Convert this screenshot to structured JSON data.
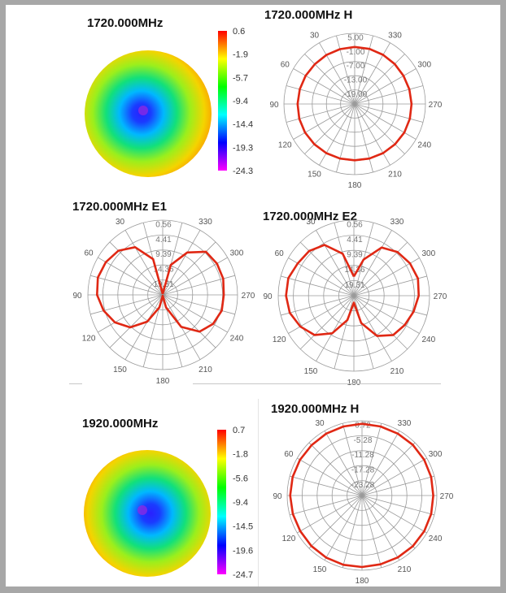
{
  "chart_data": [
    {
      "type": "heatmap",
      "title": "1720.000MHz",
      "colorbar_ticks": [
        "0.6",
        "-1.9",
        "-5.7",
        "-9.4",
        "-14.4",
        "-19.3",
        "-24.3"
      ],
      "range": [
        -24.3,
        0.6
      ],
      "colormap": [
        "#ff00ff",
        "#0000ff",
        "#00ffff",
        "#00ff00",
        "#ffff00",
        "#ff0000"
      ]
    },
    {
      "type": "polar",
      "title": "1720.000MHz  H",
      "radial_ticks": [
        "5.00",
        "-1.00",
        "-7.00",
        "-13.00",
        "-19.00"
      ],
      "radial_range": [
        -25,
        5
      ],
      "angle_labels": [
        "30",
        "60",
        "90",
        "120",
        "150",
        "180",
        "210",
        "240",
        "270",
        "300",
        "330"
      ],
      "series": [
        {
          "color": "#e02814",
          "r_values": [
            -0.8,
            -0.9,
            -1.0,
            -1.1,
            -1.0,
            -0.9,
            -0.8,
            -0.7,
            -0.7,
            -0.8,
            -0.9,
            -1.0,
            -1.1,
            -1.0,
            -0.9,
            -0.8,
            -0.7,
            -0.8,
            -0.9,
            -1.0,
            -1.1,
            -1.0,
            -0.9,
            -0.8
          ]
        }
      ]
    },
    {
      "type": "polar",
      "title": "1720.000MHz  E1",
      "radial_ticks": [
        "0.56",
        "4.41",
        "9.39",
        "14.36",
        "19.31"
      ],
      "radial_range": [
        -24.3,
        0.56
      ],
      "angle_labels": [
        "30",
        "60",
        "90",
        "120",
        "150",
        "180",
        "210",
        "240",
        "270",
        "300",
        "330"
      ],
      "series": [
        {
          "color": "#e02814",
          "r_values": [
            -24,
            -12,
            -6,
            -3.5,
            -2.5,
            -2,
            -2.5,
            -4,
            -6,
            -9,
            -14,
            -20,
            -24,
            -20,
            -12,
            -7,
            -5,
            -4,
            -4,
            -3.5,
            -3.5,
            -4,
            -8,
            -14
          ]
        }
      ]
    },
    {
      "type": "polar",
      "title": "1720.000MHz  E2",
      "radial_ticks": [
        "0.56",
        "4.41",
        "9.39",
        "14.36",
        "19.31"
      ],
      "radial_range": [
        -24.3,
        0.56
      ],
      "angle_labels": [
        "30",
        "60",
        "90",
        "120",
        "150",
        "180",
        "210",
        "240",
        "270",
        "300",
        "330"
      ],
      "series": [
        {
          "color": "#e02814",
          "r_values": [
            -18,
            -10,
            -5,
            -3.5,
            -3,
            -2,
            -2,
            -2.5,
            -4,
            -6,
            -10,
            -16,
            -22,
            -15,
            -9,
            -6,
            -5,
            -4,
            -3,
            -2.5,
            -3,
            -4,
            -6,
            -12
          ]
        }
      ]
    },
    {
      "type": "heatmap",
      "title": "1920.000MHz",
      "colorbar_ticks": [
        "0.7",
        "-1.8",
        "-5.6",
        "-9.4",
        "-14.5",
        "-19.6",
        "-24.7"
      ],
      "range": [
        -24.7,
        0.7
      ],
      "colormap": [
        "#ff00ff",
        "#0000ff",
        "#00ffff",
        "#00ff00",
        "#ffff00",
        "#ff0000"
      ]
    },
    {
      "type": "polar",
      "title": "1920.000MHz  H",
      "radial_ticks": [
        "0.72",
        "-5.28",
        "-11.28",
        "-17.28",
        "-23.28"
      ],
      "radial_range": [
        -29.28,
        0.72
      ],
      "angle_labels": [
        "30",
        "60",
        "90",
        "120",
        "150",
        "180",
        "210",
        "240",
        "270",
        "300",
        "330"
      ],
      "series": [
        {
          "color": "#e02814",
          "r_values": [
            -0.5,
            -0.6,
            -0.6,
            -0.7,
            -0.6,
            -0.5,
            -0.5,
            -0.6,
            -0.7,
            -0.6,
            -0.5,
            -0.5,
            -0.6,
            -0.7,
            -0.6,
            -0.5,
            -0.5,
            -0.6,
            -0.7,
            -0.6,
            -0.5,
            -0.5,
            -0.6,
            -0.6
          ]
        }
      ]
    }
  ]
}
